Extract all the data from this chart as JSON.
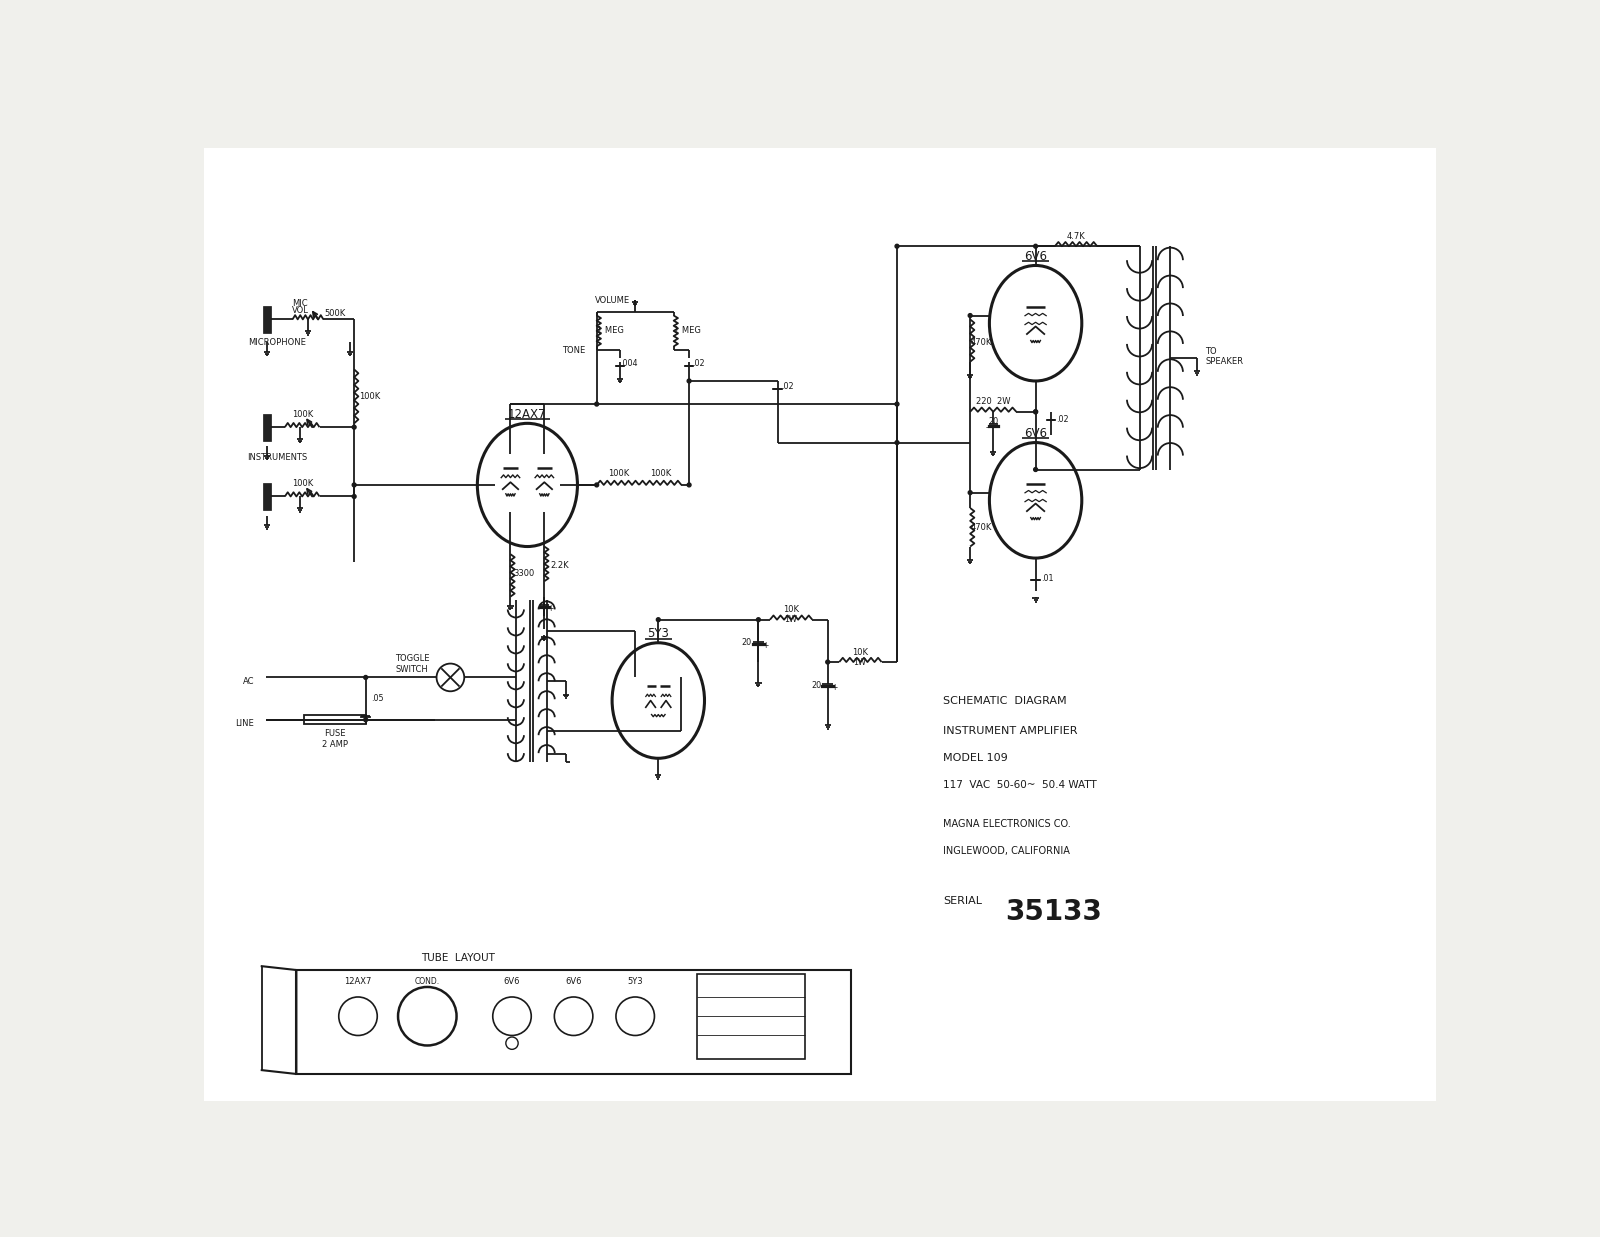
{
  "bg_color": "#f0f0ec",
  "line_color": "#1a1a1a",
  "schematic_info": {
    "title_lines": [
      "SCHEMATIC  DIAGRAM",
      "INSTRUMENT AMPLIFIER",
      "MODEL 109",
      "117  VAC  50-60~  50.4 WATT"
    ],
    "company_lines": [
      "MAGNA ELECTRONICS CO.",
      "INGLEWOOD, CALIFORNIA"
    ],
    "serial_label": "SERIAL",
    "serial_number": "35133"
  }
}
